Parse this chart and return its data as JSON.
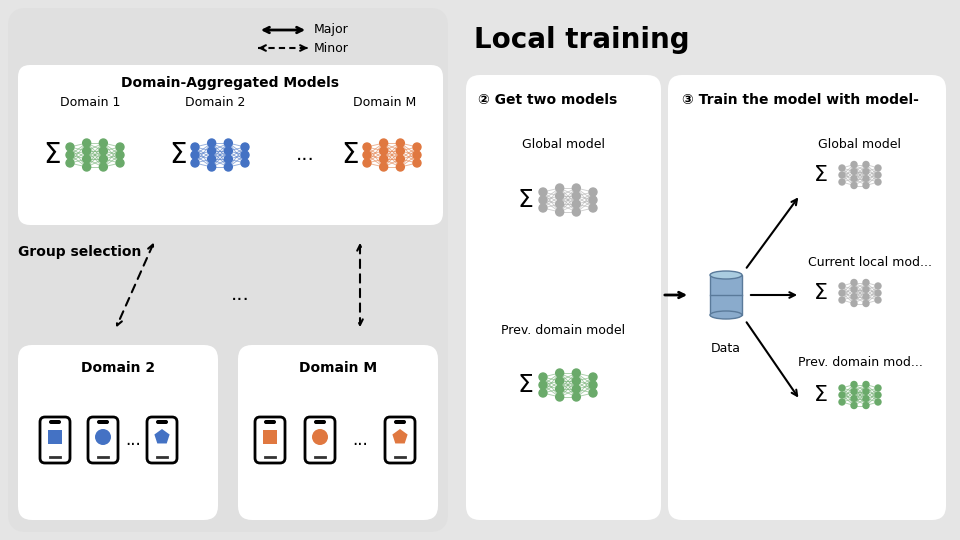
{
  "bg_outer": "#e5e5e5",
  "bg_left_panel": "#e0e0e0",
  "bg_right_panel": "#e5e5e5",
  "bg_white": "#ffffff",
  "title_local": "Local training",
  "legend_major": "Major",
  "legend_minor": "Minor",
  "domain_agg_title": "Domain-Aggregated Models",
  "domain_labels": [
    "Domain 1",
    "Domain 2",
    "Domain M"
  ],
  "group_selection_text": "Group selection",
  "step2_title": "② Get two models",
  "step3_title": "③ Train the model with model-",
  "global_model_label": "Global model",
  "prev_domain_label": "Prev. domain model",
  "current_local_label": "Current local mod...",
  "prev_domain_label2": "Prev. domain mod...",
  "data_label": "Data",
  "domain2_label": "Domain 2",
  "domainM_label": "Domain M",
  "color_green": "#6aaa6a",
  "color_blue": "#4472c4",
  "color_orange": "#e07840",
  "color_gray": "#aaaaaa",
  "color_db": "#8aabcc"
}
